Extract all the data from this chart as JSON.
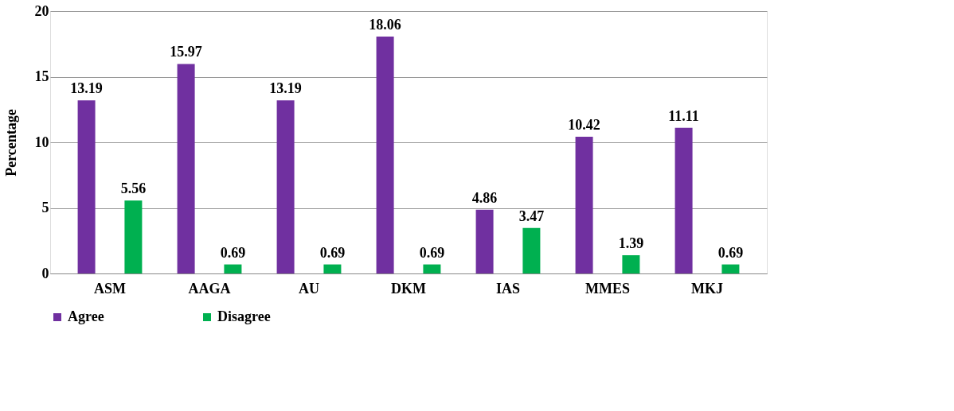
{
  "chart_data": {
    "type": "bar",
    "ylabel": "Percentage",
    "categories": [
      "ASM",
      "AAGA",
      "AU",
      "DKM",
      "IAS",
      "MMES",
      "MKJ"
    ],
    "series": [
      {
        "name": "Agree",
        "color": "#7030a0",
        "values": [
          13.19,
          15.97,
          13.19,
          18.06,
          4.86,
          10.42,
          11.11
        ]
      },
      {
        "name": "Disagree",
        "color": "#00b050",
        "values": [
          5.56,
          0.69,
          0.69,
          0.69,
          3.47,
          1.39,
          0.69
        ]
      }
    ],
    "ylim": [
      0,
      20
    ],
    "yticks": [
      0,
      5,
      10,
      15,
      20
    ],
    "grid": "y",
    "legend": "bottom",
    "data_labels": true
  }
}
